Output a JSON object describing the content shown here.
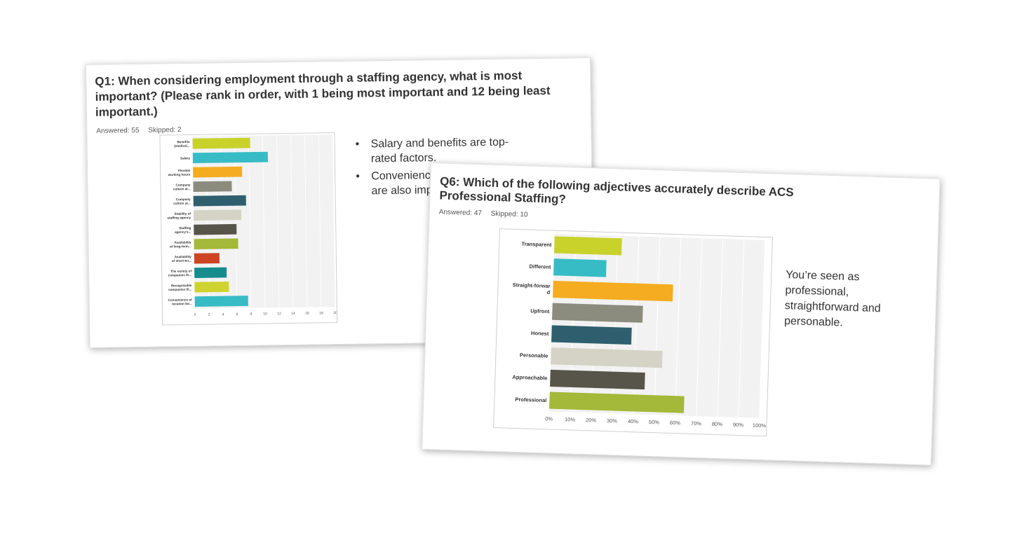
{
  "slides": {
    "q1": {
      "title": "Q1: When considering employment through a staffing agency, what is most important? (Please rank in order, with 1 being most important and 12 being least important.)",
      "answered": "Answered: 55",
      "skipped": "Skipped: 2",
      "bullets": [
        {
          "bullet": "•",
          "text": "Salary and benefits are top-rated factors."
        },
        {
          "bullet": "•",
          "text": "Convenience of location and ... are also important."
        }
      ]
    },
    "q6": {
      "title": "Q6: Which of the following adjectives accurately describe ACS Professional Staffing?",
      "answered": "Answered: 47",
      "skipped": "Skipped: 10",
      "note": "You’re seen as professional, straightforward and personable."
    }
  },
  "chart_data": [
    {
      "type": "bar",
      "orientation": "horizontal",
      "categories": [
        [
          "Benefits",
          "(medical..."
        ],
        [
          "Salary"
        ],
        [
          "Flexible",
          "working hours"
        ],
        [
          "Company",
          "culture at..."
        ],
        [
          "Company",
          "culture at..."
        ],
        [
          "Stability of",
          "staffing agency"
        ],
        [
          "Staffing",
          "agency's..."
        ],
        [
          "Availability",
          "of long-term..."
        ],
        [
          "Availability",
          "of short-ter..."
        ],
        [
          "The variety of",
          "companies th..."
        ],
        [
          "Recognizable",
          "companies th..."
        ],
        [
          "Convenience of",
          "location for..."
        ]
      ],
      "values": [
        8.2,
        10.7,
        7.0,
        5.5,
        7.5,
        6.8,
        6.1,
        6.3,
        3.6,
        4.6,
        4.9,
        7.6
      ],
      "colors": [
        "#c8d22a",
        "#37bcc6",
        "#f5ac20",
        "#8c8c7e",
        "#2f5f6f",
        "#d5d3c5",
        "#57554a",
        "#a4b839",
        "#cd4523",
        "#168d8c",
        "#cfd32f",
        "#37bcc6"
      ],
      "xticks": [
        "0",
        "2",
        "4",
        "6",
        "8",
        "10",
        "12",
        "14",
        "16",
        "18",
        "20"
      ],
      "xlim": [
        0,
        20
      ],
      "grid": true
    },
    {
      "type": "bar",
      "orientation": "horizontal",
      "categories": [
        [
          "Transparent"
        ],
        [
          "Different"
        ],
        [
          "Straight-forwar",
          "d"
        ],
        [
          "Upfront"
        ],
        [
          "Honest"
        ],
        [
          "Personable"
        ],
        [
          "Approachable"
        ],
        [
          "Professional"
        ]
      ],
      "values": [
        32,
        25,
        57,
        43,
        38,
        53,
        45,
        64
      ],
      "colors": [
        "#c8d22a",
        "#37bcc6",
        "#f5ac20",
        "#8c8c7e",
        "#2f5f6f",
        "#d5d3c5",
        "#57554a",
        "#a4b839"
      ],
      "xticks": [
        "0%",
        "10%",
        "20%",
        "30%",
        "40%",
        "50%",
        "60%",
        "70%",
        "80%",
        "90%",
        "100%"
      ],
      "xlim": [
        0,
        100
      ],
      "grid": true
    }
  ]
}
